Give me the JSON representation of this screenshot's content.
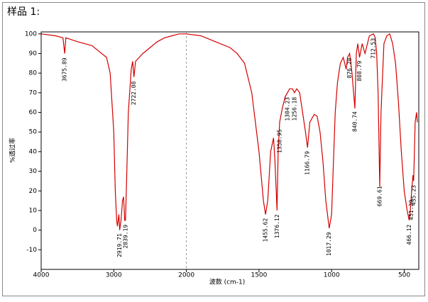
{
  "chart_data": {
    "type": "line",
    "title": "样品 1:",
    "xlabel": "波数 (cm-1)",
    "ylabel": "%透过率",
    "color": "#d40000",
    "xlim": [
      4000,
      400
    ],
    "x_scale_break": 2000,
    "x_scale_ratio": 2,
    "xticks": [
      4000,
      3000,
      2000,
      1500,
      1000,
      500
    ],
    "ylim": [
      -20,
      101
    ],
    "yticks": [
      -10,
      0,
      10,
      20,
      30,
      40,
      50,
      60,
      70,
      80,
      90,
      100
    ],
    "x": [
      4000,
      3800,
      3700,
      3676,
      3660,
      3500,
      3400,
      3300,
      3200,
      3100,
      3050,
      3000,
      2980,
      2960,
      2950,
      2930,
      2919,
      2900,
      2880,
      2865,
      2850,
      2839,
      2820,
      2800,
      2760,
      2740,
      2722,
      2700,
      2650,
      2600,
      2500,
      2400,
      2300,
      2200,
      2100,
      2000,
      1900,
      1800,
      1700,
      1650,
      1600,
      1550,
      1500,
      1470,
      1455,
      1440,
      1420,
      1400,
      1390,
      1376,
      1368,
      1358,
      1340,
      1320,
      1304,
      1290,
      1270,
      1256,
      1240,
      1220,
      1200,
      1180,
      1166,
      1150,
      1120,
      1100,
      1080,
      1060,
      1040,
      1017,
      1000,
      990,
      975,
      960,
      940,
      920,
      900,
      890,
      876,
      860,
      840,
      830,
      820,
      808,
      790,
      770,
      740,
      712,
      700,
      690,
      680,
      669,
      660,
      640,
      620,
      600,
      580,
      560,
      540,
      520,
      500,
      480,
      466,
      460,
      451,
      440,
      435,
      425,
      415,
      410
    ],
    "y": [
      100,
      99,
      98,
      90,
      98,
      96,
      95,
      94,
      91,
      88,
      80,
      50,
      20,
      5,
      2,
      8,
      0,
      5,
      15,
      17,
      5,
      5,
      30,
      60,
      82,
      86,
      78,
      86,
      88,
      90,
      93,
      96,
      98,
      99,
      100,
      100,
      99,
      96,
      93,
      90,
      85,
      70,
      40,
      15,
      8,
      15,
      40,
      47,
      35,
      10,
      40,
      55,
      62,
      68,
      70,
      72,
      72,
      70,
      72,
      70,
      60,
      50,
      42,
      55,
      59,
      58,
      50,
      35,
      15,
      1,
      8,
      30,
      60,
      75,
      85,
      88,
      82,
      88,
      90,
      80,
      62,
      90,
      95,
      88,
      95,
      90,
      99,
      100,
      98,
      90,
      70,
      22,
      60,
      95,
      99,
      100,
      95,
      85,
      65,
      40,
      20,
      10,
      5,
      8,
      18,
      28,
      25,
      55,
      60,
      55
    ],
    "peaks": [
      3675.89,
      2722.08,
      2919.71,
      2839.19,
      1455.62,
      1376.12,
      1358.95,
      1304.23,
      1256.18,
      1166.79,
      1017.29,
      876.28,
      840.74,
      808.79,
      712.53,
      669.61,
      466.12,
      451.29,
      435.23
    ]
  }
}
